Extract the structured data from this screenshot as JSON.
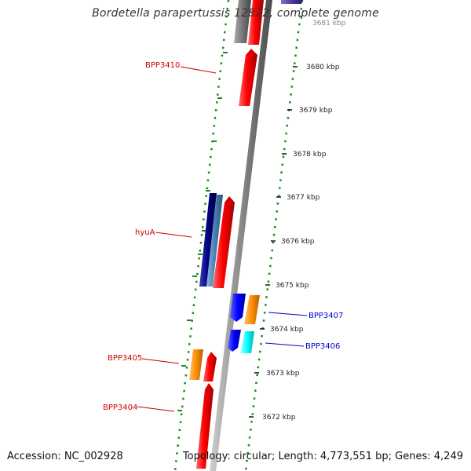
{
  "title": "Bordetella parapertussis 12822, complete genome",
  "accession": "Accession: NC_002928",
  "summary": "Topology: circular; Length: 4,773,551 bp; Genes: 4,249",
  "scale_labels": [
    {
      "text": "3681 kbp",
      "pos": 3681
    },
    {
      "text": "3680 kbp",
      "pos": 3680
    },
    {
      "text": "3679 kbp",
      "pos": 3679
    },
    {
      "text": "3678 kbp",
      "pos": 3678
    },
    {
      "text": "3677 kbp",
      "pos": 3677
    },
    {
      "text": "3676 kbp",
      "pos": 3676
    },
    {
      "text": "3675 kbp",
      "pos": 3675
    },
    {
      "text": "3674 kbp",
      "pos": 3674
    },
    {
      "text": "3673 kbp",
      "pos": 3673
    },
    {
      "text": "3672 kbp",
      "pos": 3672
    }
  ],
  "gene_labels": [
    {
      "text": "BPP3410",
      "color": "#cc0000"
    },
    {
      "text": "hyuA",
      "color": "#cc0000"
    },
    {
      "text": "BPP3407",
      "color": "#0000cc"
    },
    {
      "text": "BPP3406",
      "color": "#0000cc"
    },
    {
      "text": "BPP3405",
      "color": "#cc0000"
    },
    {
      "text": "BPP3404",
      "color": "#cc0000"
    }
  ],
  "colors": {
    "backbone": "#8a8a8a",
    "gc_dots": "#1a8a1a",
    "red_feature": "#ff0000",
    "navy_feature": "#000080",
    "steel_feature": "#4682b4",
    "blue_feature": "#0000ff",
    "orange_feature": "#ff8c00",
    "cyan_feature": "#00ffff",
    "gray_feature": "#777777",
    "purple_feature": "#4b3a9a"
  }
}
